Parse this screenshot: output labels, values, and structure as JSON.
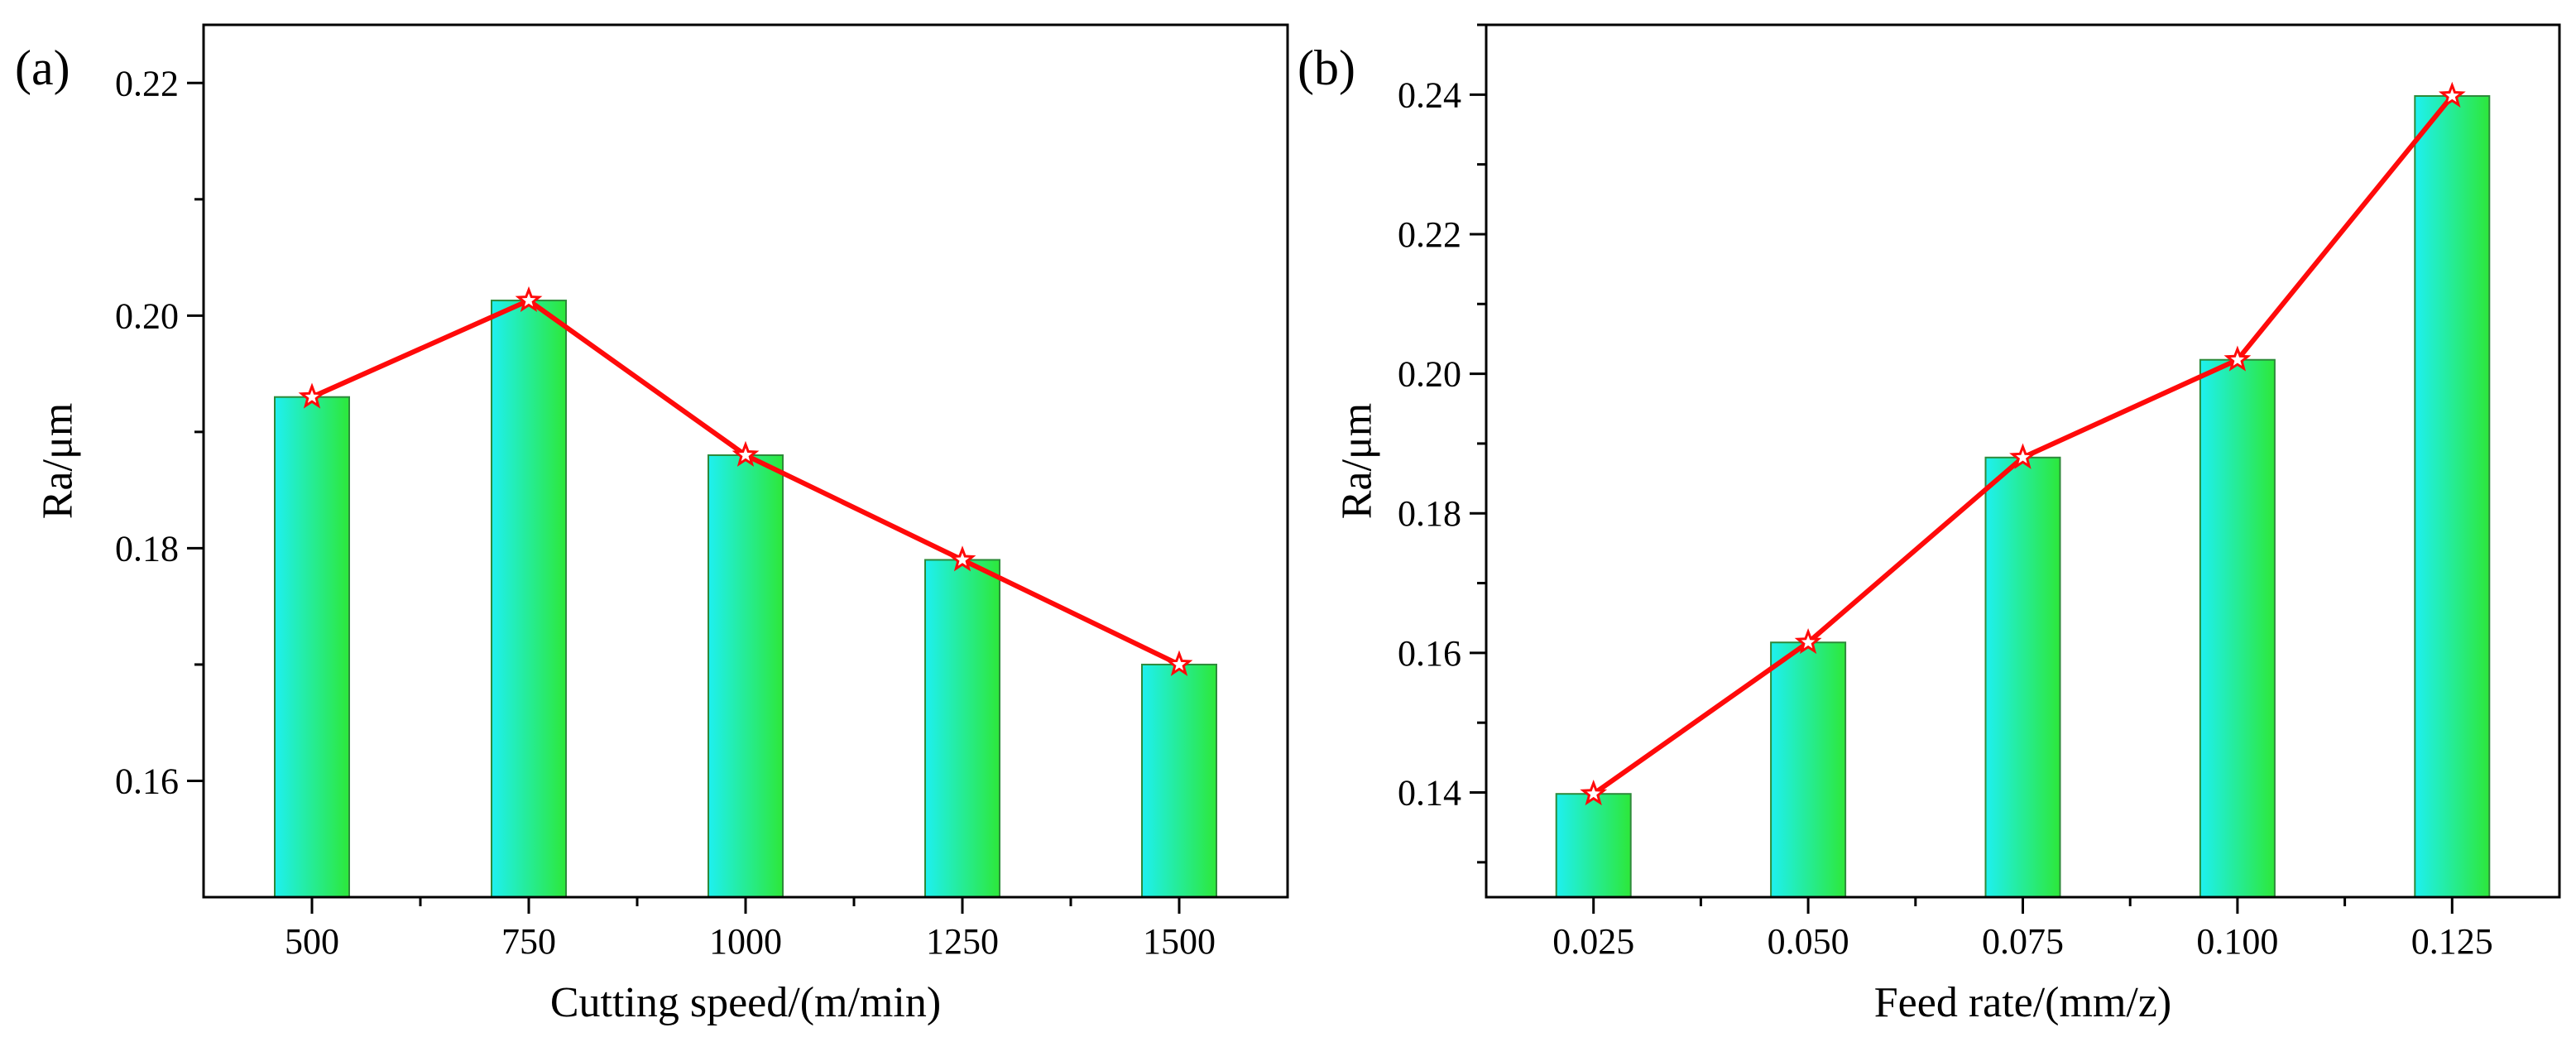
{
  "chart_data": [
    {
      "type": "bar",
      "panel_label": "(a)",
      "categories": [
        "500",
        "750",
        "1000",
        "1250",
        "1500"
      ],
      "values": [
        0.193,
        0.2013,
        0.188,
        0.179,
        0.17
      ],
      "line_overlay": true,
      "marker": "star",
      "xlabel": "Cutting speed/(m/min)",
      "ylabel": "Ra/μm",
      "ylim": [
        0.15,
        0.225
      ],
      "yticks": [
        0.16,
        0.18,
        0.2,
        0.22
      ],
      "ytick_labels": [
        "0.16",
        "0.18",
        "0.20",
        "0.22"
      ],
      "grid": false
    },
    {
      "type": "bar",
      "panel_label": "(b)",
      "categories": [
        "0.025",
        "0.050",
        "0.075",
        "0.100",
        "0.125"
      ],
      "values": [
        0.1398,
        0.1615,
        0.188,
        0.202,
        0.2398
      ],
      "line_overlay": true,
      "marker": "star",
      "xlabel": "Feed rate/(mm/z)",
      "ylabel": "Ra/μm",
      "ylim": [
        0.125,
        0.25
      ],
      "yticks": [
        0.14,
        0.16,
        0.18,
        0.2,
        0.22,
        0.24
      ],
      "ytick_labels": [
        "0.14",
        "0.16",
        "0.18",
        "0.20",
        "0.22",
        "0.24"
      ],
      "grid": false
    }
  ],
  "colors": {
    "bar_left": "#1ef0f0",
    "bar_right": "#2de83a",
    "bar_edge": "#2d8a3a",
    "line": "#ff0a0a",
    "axis": "#000000"
  }
}
